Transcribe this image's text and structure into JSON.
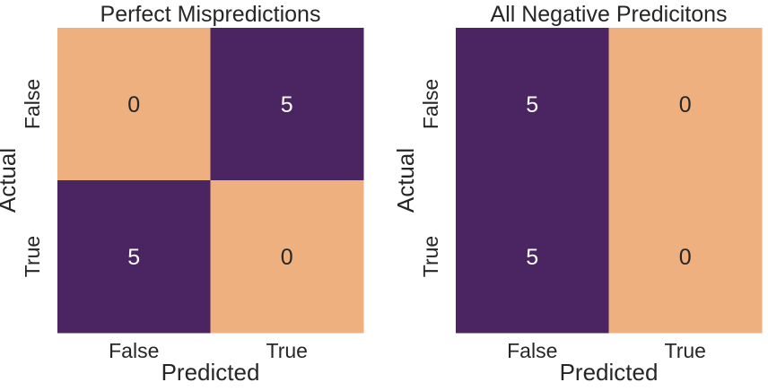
{
  "chart_data": [
    {
      "type": "heatmap",
      "title": "Perfect Mispredictions",
      "xlabel": "Predicted",
      "ylabel": "Actual",
      "x_categories": [
        "False",
        "True"
      ],
      "y_categories": [
        "False",
        "True"
      ],
      "values": [
        [
          0,
          5
        ],
        [
          5,
          0
        ]
      ],
      "value_range": [
        0,
        5
      ],
      "colormap": {
        "low": "#eeb07f",
        "high": "#4b2462"
      },
      "grid": false,
      "legend": "none"
    },
    {
      "type": "heatmap",
      "title": "All Negative Predicitons",
      "xlabel": "Predicted",
      "ylabel": "Actual",
      "x_categories": [
        "False",
        "True"
      ],
      "y_categories": [
        "False",
        "True"
      ],
      "values": [
        [
          5,
          0
        ],
        [
          5,
          0
        ]
      ],
      "value_range": [
        0,
        5
      ],
      "colormap": {
        "low": "#eeb07f",
        "high": "#4b2462"
      },
      "grid": false,
      "legend": "none"
    }
  ]
}
